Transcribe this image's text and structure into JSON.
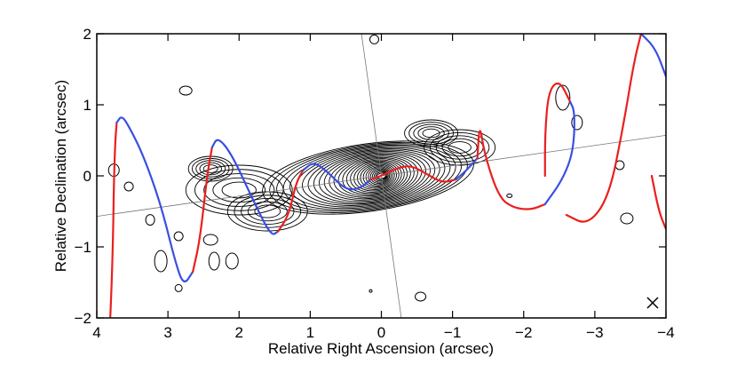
{
  "chart_data": {
    "type": "line",
    "title": "",
    "xlabel": "Relative Right Ascension (arcsec)",
    "ylabel": "Relative Declination (arcsec)",
    "xlim": [
      4,
      -4
    ],
    "ylim": [
      -2,
      2
    ],
    "xticks": [
      4,
      3,
      2,
      1,
      0,
      -1,
      -2,
      -3,
      -4
    ],
    "yticks": [
      -2,
      -1,
      0,
      1,
      2
    ],
    "xtick_labels": [
      "4",
      "3",
      "2",
      "1",
      "0",
      "−1",
      "−2",
      "−3",
      "−4"
    ],
    "ytick_labels": [
      "−2",
      "−1",
      "0",
      "1",
      "2"
    ],
    "grid": false,
    "colors": {
      "red_segment": "#e8201e",
      "blue_segment": "#3a4fe0",
      "contour": "#000000",
      "reference_line": "#777777"
    },
    "reference_lines": [
      {
        "points": [
          [
            4.0,
            -0.57
          ],
          [
            -4.0,
            0.57
          ]
        ]
      },
      {
        "points": [
          [
            0.28,
            2.0
          ],
          [
            -0.28,
            -2.0
          ]
        ]
      }
    ],
    "series": [
      {
        "color": "red",
        "points": [
          [
            3.81,
            -1.98
          ],
          [
            3.79,
            -1.5
          ],
          [
            3.77,
            -0.8
          ],
          [
            3.76,
            -0.1
          ],
          [
            3.74,
            0.5
          ],
          [
            3.72,
            0.75
          ]
        ]
      },
      {
        "color": "blue",
        "points": [
          [
            3.72,
            0.75
          ],
          [
            3.65,
            0.85
          ],
          [
            3.55,
            0.7
          ],
          [
            3.35,
            0.3
          ],
          [
            3.1,
            -0.4
          ],
          [
            2.9,
            -1.2
          ],
          [
            2.78,
            -1.55
          ],
          [
            2.65,
            -1.35
          ]
        ]
      },
      {
        "color": "red",
        "points": [
          [
            2.65,
            -1.35
          ],
          [
            2.55,
            -0.9
          ],
          [
            2.45,
            0.0
          ],
          [
            2.38,
            0.4
          ]
        ]
      },
      {
        "color": "blue",
        "points": [
          [
            2.38,
            0.4
          ],
          [
            2.3,
            0.55
          ],
          [
            2.1,
            0.3
          ],
          [
            1.8,
            -0.35
          ],
          [
            1.55,
            -0.85
          ],
          [
            1.45,
            -0.78
          ]
        ]
      },
      {
        "color": "red",
        "points": [
          [
            1.45,
            -0.78
          ],
          [
            1.3,
            -0.55
          ],
          [
            1.2,
            -0.1
          ],
          [
            1.1,
            0.08
          ]
        ]
      },
      {
        "color": "blue",
        "points": [
          [
            1.1,
            0.08
          ],
          [
            0.95,
            0.2
          ],
          [
            0.75,
            0.05
          ],
          [
            0.5,
            -0.2
          ],
          [
            0.3,
            -0.18
          ],
          [
            0.15,
            -0.05
          ]
        ]
      },
      {
        "color": "red",
        "points": [
          [
            0.15,
            -0.05
          ],
          [
            0.0,
            0.0
          ],
          [
            -0.2,
            0.1
          ],
          [
            -0.4,
            0.15
          ],
          [
            -0.6,
            0.05
          ],
          [
            -0.85,
            -0.1
          ],
          [
            -1.05,
            -0.05
          ]
        ]
      },
      {
        "color": "blue",
        "points": [
          [
            -1.05,
            -0.05
          ],
          [
            -1.2,
            0.08
          ],
          [
            -1.35,
            0.25
          ]
        ]
      },
      {
        "color": "red",
        "points": [
          [
            -1.35,
            0.25
          ],
          [
            -1.38,
            0.75
          ],
          [
            -1.45,
            0.3
          ],
          [
            -1.65,
            -0.3
          ],
          [
            -1.85,
            -0.45
          ],
          [
            -2.1,
            -0.48
          ],
          [
            -2.3,
            -0.4
          ]
        ]
      },
      {
        "color": "blue",
        "points": [
          [
            -2.3,
            -0.4
          ],
          [
            -2.55,
            -0.05
          ],
          [
            -2.7,
            0.35
          ],
          [
            -2.72,
            0.9
          ],
          [
            -2.65,
            1.05
          ]
        ]
      },
      {
        "color": "red",
        "points": [
          [
            -2.65,
            1.05
          ],
          [
            -2.5,
            1.35
          ],
          [
            -2.35,
            1.2
          ],
          [
            -2.3,
            0.6
          ],
          [
            -2.3,
            0.0
          ]
        ]
      },
      {
        "color": "red",
        "points": [
          [
            -2.6,
            -0.55
          ],
          [
            -2.9,
            -0.7
          ],
          [
            -3.2,
            -0.3
          ],
          [
            -3.4,
            0.7
          ],
          [
            -3.55,
            1.6
          ],
          [
            -3.65,
            2.0
          ]
        ]
      },
      {
        "color": "blue",
        "points": [
          [
            -3.65,
            2.0
          ],
          [
            -3.85,
            1.8
          ],
          [
            -4.0,
            1.4
          ]
        ]
      },
      {
        "color": "red",
        "points": [
          [
            -4.0,
            -0.75
          ],
          [
            -3.9,
            -0.5
          ],
          [
            -3.8,
            0.0
          ]
        ]
      }
    ],
    "contour_center": [
      0.0,
      0.0
    ],
    "annotations": []
  }
}
